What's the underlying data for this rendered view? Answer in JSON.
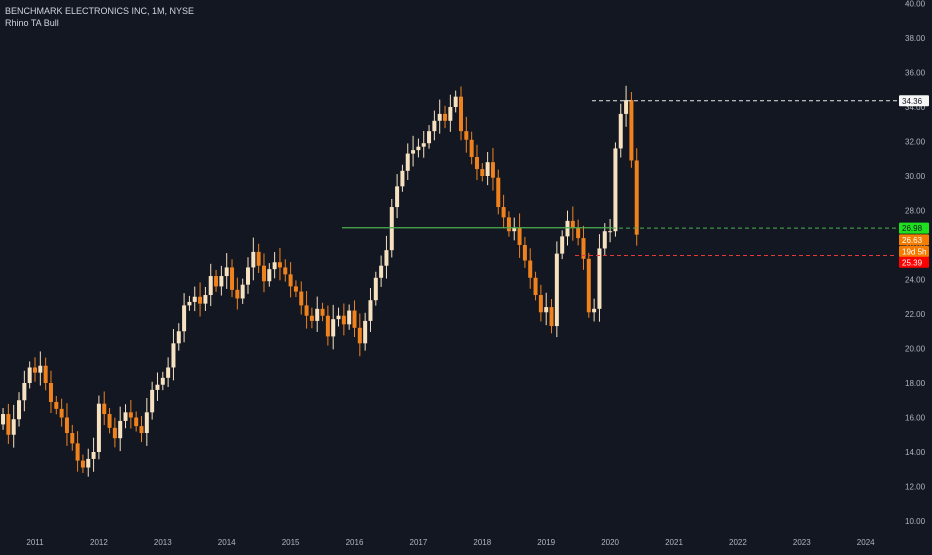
{
  "header": {
    "title": "BENCHMARK ELECTRONICS INC, 1M, NYSE",
    "indicator": "Rhino TA Bull"
  },
  "colors": {
    "background": "#131722",
    "up_candle": "#f6e1c0",
    "down_candle": "#f0821e",
    "support_line": "#4caf50",
    "last_price_label": "#f6e1c0",
    "green_label": "#1fe01f",
    "orange_label": "#f57c00",
    "red_label": "#ff0000",
    "axis_text": "#b2b5be"
  },
  "chart_data": {
    "type": "candlestick",
    "title": "BENCHMARK ELECTRONICS INC, 1M, NYSE",
    "ylim": [
      10,
      40
    ],
    "y_ticks": [
      "10.00",
      "12.00",
      "14.00",
      "16.00",
      "18.00",
      "20.00",
      "22.00",
      "24.00",
      "26.00",
      "28.00",
      "30.00",
      "32.00",
      "34.00",
      "36.00",
      "38.00",
      "40.00"
    ],
    "x_ticks": [
      "2011",
      "2012",
      "2013",
      "2014",
      "2015",
      "2016",
      "2017",
      "2018",
      "2019",
      "2020",
      "2021",
      "2022",
      "2023",
      "2024"
    ],
    "price_labels": {
      "last_close": "34.36",
      "green_level": "26.98",
      "current": "26.63",
      "countdown": "19d 5h",
      "red_level": "25.39"
    },
    "levels": {
      "resistance_dashed": 34.36,
      "support_solid": 27.0,
      "support_dashed": 26.98,
      "stop_dashed": 25.39
    },
    "candles_close": [
      16.2,
      15.0,
      15.9,
      17.0,
      18.0,
      18.9,
      18.6,
      19.0,
      18.0,
      16.9,
      16.5,
      16.0,
      15.1,
      14.5,
      13.5,
      13.1,
      13.6,
      14.0,
      16.8,
      16.2,
      15.4,
      14.8,
      15.8,
      16.3,
      16.0,
      15.5,
      15.1,
      16.3,
      17.6,
      17.9,
      18.3,
      18.9,
      20.3,
      21.0,
      22.5,
      22.7,
      23.0,
      22.6,
      23.1,
      24.2,
      23.6,
      24.2,
      24.7,
      23.4,
      22.9,
      23.7,
      24.7,
      25.6,
      24.8,
      23.9,
      24.6,
      25.0,
      24.7,
      24.3,
      23.6,
      23.3,
      22.5,
      21.9,
      21.6,
      22.3,
      21.9,
      20.7,
      21.7,
      21.9,
      21.4,
      22.2,
      21.2,
      20.3,
      21.6,
      22.8,
      24.1,
      24.8,
      25.7,
      28.2,
      29.4,
      30.3,
      31.3,
      31.5,
      31.7,
      31.9,
      32.6,
      33.2,
      33.6,
      33.2,
      34.0,
      34.6,
      32.6,
      32.1,
      31.1,
      30.4,
      30.0,
      30.8,
      29.9,
      28.2,
      27.6,
      26.8,
      27.0,
      26.0,
      25.1,
      24.1,
      23.1,
      22.1,
      22.4,
      21.3,
      25.5,
      26.5,
      27.4,
      27.0,
      26.4,
      25.2,
      22.1,
      22.3,
      25.8,
      26.8,
      26.8,
      31.6,
      33.6,
      34.4,
      30.9,
      26.6
    ],
    "candles_start": "2010-07",
    "interval": "1M"
  }
}
